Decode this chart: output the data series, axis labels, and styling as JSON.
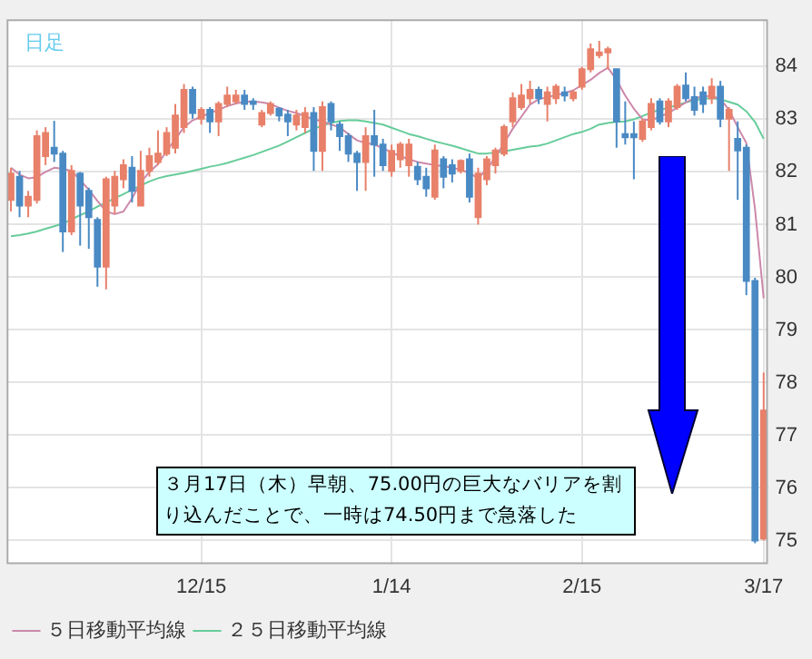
{
  "chart_data": {
    "type": "candlestick",
    "title": "日足",
    "categories": [
      null,
      null,
      null,
      null,
      null,
      null,
      null,
      null,
      null,
      null,
      null,
      null,
      null,
      null,
      null,
      null,
      null,
      null,
      null,
      null,
      null,
      null,
      "12/15",
      null,
      null,
      null,
      null,
      null,
      null,
      null,
      null,
      null,
      null,
      null,
      null,
      null,
      null,
      null,
      null,
      null,
      null,
      null,
      null,
      null,
      "1/14",
      null,
      null,
      null,
      null,
      null,
      null,
      null,
      null,
      null,
      null,
      null,
      null,
      null,
      null,
      null,
      null,
      null,
      null,
      null,
      null,
      null,
      "2/15",
      null,
      null,
      null,
      null,
      null,
      null,
      null,
      null,
      null,
      null,
      null,
      null,
      null,
      null,
      null,
      null,
      null,
      null,
      null,
      null,
      "3/17"
    ],
    "ohlc": [
      [
        81.47,
        82.08,
        81.25,
        81.97
      ],
      [
        81.91,
        82.02,
        81.14,
        81.36
      ],
      [
        81.36,
        81.64,
        81.14,
        81.53
      ],
      [
        81.47,
        82.79,
        81.4,
        82.68
      ],
      [
        82.3,
        82.85,
        82.13,
        82.74
      ],
      [
        82.46,
        82.97,
        82.19,
        82.35
      ],
      [
        82.35,
        82.4,
        80.48,
        80.87
      ],
      [
        80.87,
        82.13,
        80.8,
        82.02
      ],
      [
        81.97,
        82.0,
        80.6,
        81.36
      ],
      [
        81.64,
        81.7,
        80.54,
        81.14
      ],
      [
        81.09,
        81.14,
        79.82,
        80.2
      ],
      [
        80.2,
        81.91,
        79.77,
        81.86
      ],
      [
        81.36,
        82.02,
        81.2,
        81.91
      ],
      [
        81.86,
        82.24,
        81.69,
        82.13
      ],
      [
        82.08,
        82.3,
        81.42,
        81.64
      ],
      [
        81.36,
        82.4,
        81.36,
        82.02
      ],
      [
        82.02,
        82.46,
        81.91,
        82.3
      ],
      [
        82.19,
        82.79,
        82.13,
        82.35
      ],
      [
        82.35,
        82.85,
        82.3,
        82.74
      ],
      [
        82.46,
        83.29,
        82.35,
        83.07
      ],
      [
        82.85,
        83.67,
        82.74,
        83.56
      ],
      [
        83.56,
        83.62,
        83.01,
        83.12
      ],
      [
        83.01,
        83.23,
        82.9,
        83.18
      ],
      [
        83.18,
        83.23,
        82.74,
        82.96
      ],
      [
        82.96,
        83.34,
        82.68,
        83.29
      ],
      [
        83.29,
        83.62,
        83.23,
        83.45
      ],
      [
        83.34,
        83.56,
        83.29,
        83.45
      ],
      [
        83.45,
        83.56,
        83.18,
        83.29
      ],
      [
        83.34,
        83.4,
        83.18,
        83.29
      ],
      [
        82.9,
        83.18,
        82.85,
        83.12
      ],
      [
        83.12,
        83.34,
        83.07,
        83.29
      ],
      [
        83.2,
        83.23,
        82.96,
        83.07
      ],
      [
        83.09,
        83.18,
        82.68,
        82.96
      ],
      [
        82.9,
        83.18,
        82.79,
        83.07
      ],
      [
        82.85,
        83.23,
        82.74,
        83.12
      ],
      [
        83.12,
        83.23,
        82.02,
        82.4
      ],
      [
        82.4,
        83.34,
        82.02,
        83.23
      ],
      [
        83.29,
        83.34,
        82.79,
        82.96
      ],
      [
        82.9,
        82.96,
        82.4,
        82.68
      ],
      [
        82.68,
        82.74,
        82.19,
        82.35
      ],
      [
        82.35,
        82.4,
        81.64,
        82.19
      ],
      [
        82.19,
        82.85,
        81.64,
        82.68
      ],
      [
        82.68,
        83.18,
        81.91,
        82.52
      ],
      [
        82.52,
        82.63,
        82.02,
        82.13
      ],
      [
        82.02,
        82.52,
        81.91,
        82.4
      ],
      [
        82.24,
        82.57,
        82.08,
        82.52
      ],
      [
        82.13,
        82.63,
        81.91,
        82.52
      ],
      [
        82.1,
        82.19,
        81.75,
        81.86
      ],
      [
        81.91,
        82.08,
        81.53,
        81.69
      ],
      [
        81.53,
        82.52,
        81.47,
        82.41
      ],
      [
        82.24,
        82.3,
        81.69,
        81.91
      ],
      [
        82.13,
        82.24,
        81.8,
        81.97
      ],
      [
        82.02,
        82.24,
        81.97,
        82.21
      ],
      [
        82.24,
        82.35,
        81.42,
        81.53
      ],
      [
        81.14,
        82.08,
        81.0,
        81.97
      ],
      [
        81.86,
        82.3,
        81.75,
        82.24
      ],
      [
        82.13,
        82.46,
        81.97,
        82.41
      ],
      [
        82.35,
        82.9,
        82.3,
        82.85
      ],
      [
        82.96,
        83.51,
        82.85,
        83.4
      ],
      [
        83.23,
        83.67,
        83.18,
        83.45
      ],
      [
        83.4,
        83.73,
        83.29,
        83.56
      ],
      [
        83.56,
        83.62,
        83.29,
        83.4
      ],
      [
        83.29,
        83.62,
        82.96,
        83.51
      ],
      [
        83.4,
        83.67,
        83.29,
        83.62
      ],
      [
        83.51,
        83.62,
        83.34,
        83.45
      ],
      [
        83.4,
        83.56,
        83.34,
        83.51
      ],
      [
        83.62,
        84.0,
        83.56,
        83.95
      ],
      [
        83.95,
        84.44,
        83.89,
        84.33
      ],
      [
        84.22,
        84.49,
        84.16,
        84.27
      ],
      [
        84.27,
        84.38,
        83.95,
        84.33
      ],
      [
        83.95,
        83.95,
        82.46,
        82.96
      ],
      [
        82.72,
        83.34,
        82.52,
        82.66
      ],
      [
        82.72,
        82.96,
        81.86,
        82.66
      ],
      [
        82.63,
        83.01,
        82.57,
        82.96
      ],
      [
        82.85,
        83.4,
        82.79,
        83.29
      ],
      [
        83.34,
        83.4,
        82.9,
        82.96
      ],
      [
        82.96,
        83.4,
        82.85,
        83.34
      ],
      [
        83.23,
        83.67,
        83.18,
        83.62
      ],
      [
        83.64,
        83.89,
        83.34,
        83.4
      ],
      [
        83.42,
        83.62,
        83.07,
        83.18
      ],
      [
        83.51,
        83.62,
        83.12,
        83.29
      ],
      [
        83.4,
        83.78,
        83.29,
        83.62
      ],
      [
        83.62,
        83.73,
        82.85,
        83.01
      ],
      [
        83.01,
        83.23,
        82.02,
        83.18
      ],
      [
        82.63,
        82.96,
        81.47,
        82.41
      ],
      [
        82.46,
        82.52,
        79.66,
        79.93
      ],
      [
        79.93,
        79.99,
        74.95,
        75.0
      ],
      [
        75.04,
        78.19,
        75.0,
        77.47
      ]
    ],
    "colors": [
      "#e8806a",
      "#4a8ac4",
      "#e8806a",
      "#e8806a",
      "#e8806a",
      "#4a8ac4",
      "#4a8ac4",
      "#e8806a",
      "#4a8ac4",
      "#4a8ac4",
      "#4a8ac4",
      "#e8806a",
      "#e8806a",
      "#e8806a",
      "#4a8ac4",
      "#e8806a",
      "#e8806a",
      "#e8806a",
      "#e8806a",
      "#e8806a",
      "#e8806a",
      "#4a8ac4",
      "#e8806a",
      "#4a8ac4",
      "#e8806a",
      "#e8806a",
      "#e8806a",
      "#4a8ac4",
      "#4a8ac4",
      "#e8806a",
      "#e8806a",
      "#4a8ac4",
      "#4a8ac4",
      "#e8806a",
      "#e8806a",
      "#4a8ac4",
      "#e8806a",
      "#4a8ac4",
      "#4a8ac4",
      "#4a8ac4",
      "#4a8ac4",
      "#e8806a",
      "#4a8ac4",
      "#4a8ac4",
      "#e8806a",
      "#e8806a",
      "#e8806a",
      "#4a8ac4",
      "#4a8ac4",
      "#e8806a",
      "#4a8ac4",
      "#4a8ac4",
      "#e8806a",
      "#4a8ac4",
      "#e8806a",
      "#e8806a",
      "#e8806a",
      "#e8806a",
      "#e8806a",
      "#e8806a",
      "#e8806a",
      "#4a8ac4",
      "#e8806a",
      "#e8806a",
      "#4a8ac4",
      "#e8806a",
      "#e8806a",
      "#e8806a",
      "#e8806a",
      "#e8806a",
      "#4a8ac4",
      "#4a8ac4",
      "#4a8ac4",
      "#e8806a",
      "#e8806a",
      "#4a8ac4",
      "#e8806a",
      "#e8806a",
      "#4a8ac4",
      "#4a8ac4",
      "#4a8ac4",
      "#e8806a",
      "#4a8ac4",
      "#e8806a",
      "#4a8ac4",
      "#4a8ac4",
      "#4a8ac4",
      "#e8806a"
    ],
    "series": [
      {
        "type": "line",
        "name": "５日移動平均線",
        "color": "#cc88aa",
        "values": [
          82.08,
          81.95,
          81.88,
          81.9,
          82.0,
          82.08,
          82.06,
          82.02,
          81.85,
          81.66,
          81.45,
          81.25,
          81.2,
          81.25,
          81.5,
          81.8,
          82.0,
          82.15,
          82.4,
          82.62,
          82.85,
          82.98,
          83.05,
          83.12,
          83.18,
          83.25,
          83.3,
          83.33,
          83.34,
          83.32,
          83.29,
          83.22,
          83.16,
          83.12,
          83.06,
          83.0,
          82.96,
          82.9,
          82.85,
          82.72,
          82.6,
          82.55,
          82.52,
          82.45,
          82.37,
          82.3,
          82.24,
          82.19,
          82.16,
          82.13,
          82.11,
          82.08,
          82.04,
          81.98,
          81.88,
          82.05,
          82.28,
          82.55,
          82.82,
          83.05,
          83.28,
          83.38,
          83.42,
          83.46,
          83.5,
          83.55,
          83.65,
          83.75,
          83.88,
          83.98,
          83.75,
          83.45,
          83.2,
          83.0,
          82.98,
          83.05,
          83.12,
          83.22,
          83.32,
          83.4,
          83.43,
          83.45,
          83.38,
          83.18,
          82.85,
          82.55,
          81.3,
          79.6
        ]
      },
      {
        "type": "line",
        "name": "２５日移動平均線",
        "color": "#66cc99",
        "values": [
          80.78,
          80.8,
          80.83,
          80.87,
          80.92,
          80.97,
          81.02,
          81.1,
          81.18,
          81.25,
          81.34,
          81.42,
          81.5,
          81.58,
          81.66,
          81.74,
          81.82,
          81.88,
          81.92,
          81.95,
          81.98,
          82.02,
          82.06,
          82.1,
          82.13,
          82.17,
          82.22,
          82.27,
          82.32,
          82.38,
          82.44,
          82.5,
          82.58,
          82.66,
          82.74,
          82.82,
          82.88,
          82.93,
          82.97,
          82.98,
          82.98,
          82.96,
          82.93,
          82.9,
          82.84,
          82.78,
          82.72,
          82.68,
          82.63,
          82.58,
          82.54,
          82.5,
          82.45,
          82.4,
          82.35,
          82.35,
          82.37,
          82.39,
          82.42,
          82.45,
          82.48,
          82.5,
          82.54,
          82.6,
          82.66,
          82.72,
          82.76,
          82.82,
          82.9,
          82.93,
          82.95,
          82.96,
          83.0,
          83.06,
          83.13,
          83.18,
          83.22,
          83.27,
          83.32,
          83.36,
          83.39,
          83.4,
          83.38,
          83.33,
          83.28,
          83.15,
          82.95,
          82.63
        ]
      }
    ],
    "ylim": [
      74.55,
      84.9
    ],
    "yticks": [
      75,
      76,
      77,
      78,
      79,
      80,
      81,
      82,
      83,
      84
    ],
    "grid": true,
    "legend": "bottom left",
    "annotations": [
      "３月17日（木）早朝、75.00円の巨大なバリアを割り込んだことで、一時は74.50円まで急落した"
    ]
  }
}
